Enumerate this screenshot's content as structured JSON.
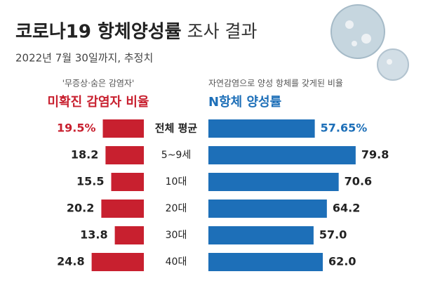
{
  "chart_data": {
    "type": "bar",
    "title": "코로나19 항체양성률",
    "title_suffix": "조사 결과",
    "subtitle": "2022년 7월 30일까지, 추정치",
    "categories": [
      "전체 평균",
      "5~9세",
      "10대",
      "20대",
      "30대",
      "40대"
    ],
    "series": [
      {
        "name": "미확진 감염자 비율",
        "note": "'무증상·숨은 감염자'",
        "color": "#c8202f",
        "values": [
          19.5,
          18.2,
          15.5,
          20.2,
          13.8,
          24.8
        ],
        "value_labels": [
          "19.5%",
          "18.2",
          "15.5",
          "20.2",
          "13.8",
          "24.8"
        ],
        "xlim": [
          0,
          30
        ]
      },
      {
        "name": "N항체 양성률",
        "note": "자연감염으로 양성 항체를 갖게된 비율",
        "color": "#1d6fb8",
        "values": [
          57.65,
          79.8,
          70.6,
          64.2,
          57.0,
          62.0
        ],
        "value_labels": [
          "57.65%",
          "79.8",
          "70.6",
          "64.2",
          "57.0",
          "62.0"
        ],
        "xlim": [
          0,
          100
        ]
      }
    ]
  }
}
